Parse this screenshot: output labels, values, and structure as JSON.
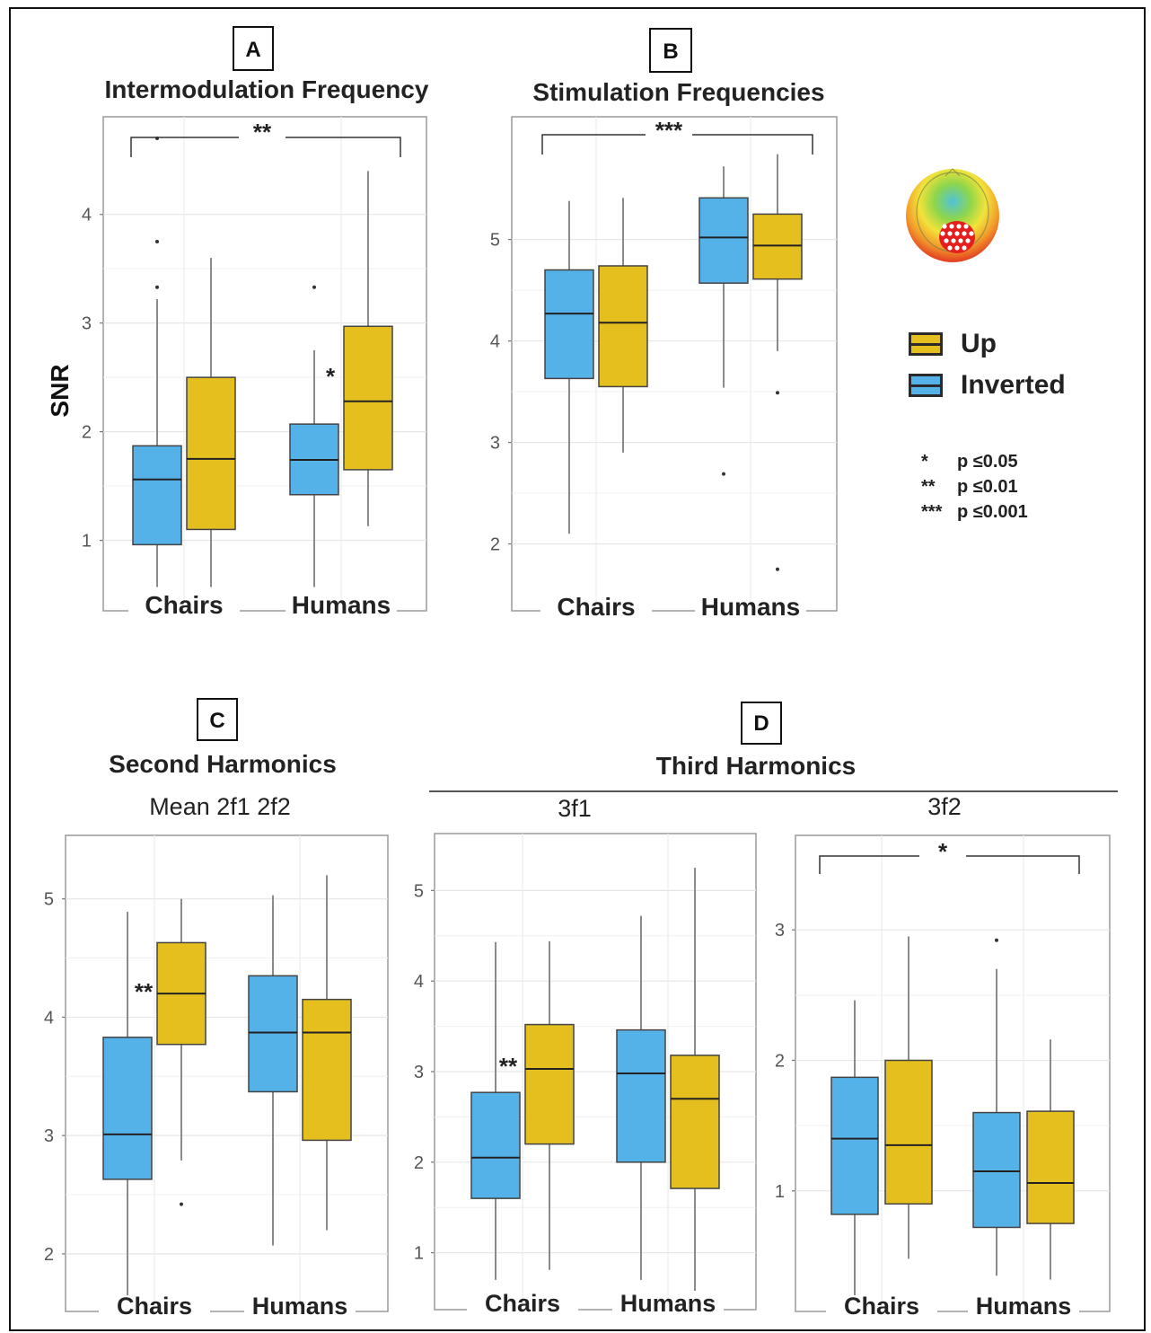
{
  "legend": {
    "up_label": "Up",
    "inverted_label": "Inverted",
    "up_color": "#E5BF1E",
    "inverted_color": "#55B2E8"
  },
  "significance_key": [
    {
      "stars": "*",
      "text": "p ≤0.05"
    },
    {
      "stars": "**",
      "text": "p ≤0.01"
    },
    {
      "stars": "***",
      "text": "p ≤0.001"
    }
  ],
  "section_D": {
    "letter": "D",
    "title": "Third Harmonics"
  },
  "chart_data": [
    {
      "type": "boxplot",
      "panel": "A",
      "title": "Intermodulation Frequency",
      "subtitle": "",
      "ylabel": "SNR",
      "xlabel": "",
      "categories": [
        "Chairs",
        "Humans"
      ],
      "ylim": [
        0.5,
        4.75
      ],
      "yticks": [
        1,
        2,
        3,
        4
      ],
      "series": [
        {
          "name": "Inverted",
          "color": "#55B2E8",
          "boxes": [
            {
              "whisker_low": 0.57,
              "q1": 0.96,
              "median": 1.56,
              "q3": 1.87,
              "whisker_high": 3.22,
              "outliers": [
                3.33,
                3.75,
                4.7
              ]
            },
            {
              "whisker_low": 0.57,
              "q1": 1.42,
              "median": 1.74,
              "q3": 2.07,
              "whisker_high": 2.75,
              "outliers": [
                3.33
              ]
            }
          ]
        },
        {
          "name": "Up",
          "color": "#E5BF1E",
          "boxes": [
            {
              "whisker_low": 0.57,
              "q1": 1.1,
              "median": 1.75,
              "q3": 2.5,
              "whisker_high": 3.6,
              "outliers": []
            },
            {
              "whisker_low": 1.13,
              "q1": 1.65,
              "median": 2.28,
              "q3": 2.97,
              "whisker_high": 4.4,
              "outliers": []
            }
          ]
        }
      ],
      "bracket": {
        "label": "**"
      },
      "annotations": [
        {
          "label": "*",
          "category": "Humans"
        }
      ]
    },
    {
      "type": "boxplot",
      "panel": "B",
      "title": "Stimulation Frequencies",
      "subtitle": "",
      "ylabel": "",
      "xlabel": "",
      "categories": [
        "Chairs",
        "Humans"
      ],
      "ylim": [
        1.5,
        6.05
      ],
      "yticks": [
        2,
        3,
        4,
        5
      ],
      "series": [
        {
          "name": "Inverted",
          "color": "#55B2E8",
          "boxes": [
            {
              "whisker_low": 2.1,
              "q1": 3.63,
              "median": 4.27,
              "q3": 4.7,
              "whisker_high": 5.38,
              "outliers": []
            },
            {
              "whisker_low": 3.54,
              "q1": 4.57,
              "median": 5.02,
              "q3": 5.41,
              "whisker_high": 5.72,
              "outliers": [
                2.69
              ]
            }
          ]
        },
        {
          "name": "Up",
          "color": "#E5BF1E",
          "boxes": [
            {
              "whisker_low": 2.9,
              "q1": 3.55,
              "median": 4.18,
              "q3": 4.74,
              "whisker_high": 5.41,
              "outliers": []
            },
            {
              "whisker_low": 3.9,
              "q1": 4.61,
              "median": 4.94,
              "q3": 5.25,
              "whisker_high": 5.84,
              "outliers": [
                3.49,
                1.75
              ]
            }
          ]
        }
      ],
      "bracket": {
        "label": "***"
      },
      "annotations": []
    },
    {
      "type": "boxplot",
      "panel": "C",
      "title": "Second Harmonics",
      "subtitle": "Mean 2f1 2f2",
      "ylabel": "",
      "xlabel": "",
      "categories": [
        "Chairs",
        "Humans"
      ],
      "ylim": [
        1.65,
        5.4
      ],
      "yticks": [
        2,
        3,
        4,
        5
      ],
      "series": [
        {
          "name": "Inverted",
          "color": "#55B2E8",
          "boxes": [
            {
              "whisker_low": 1.65,
              "q1": 2.63,
              "median": 3.01,
              "q3": 3.83,
              "whisker_high": 4.89,
              "outliers": []
            },
            {
              "whisker_low": 2.07,
              "q1": 3.37,
              "median": 3.87,
              "q3": 4.35,
              "whisker_high": 5.03,
              "outliers": []
            }
          ]
        },
        {
          "name": "Up",
          "color": "#E5BF1E",
          "boxes": [
            {
              "whisker_low": 2.79,
              "q1": 3.77,
              "median": 4.2,
              "q3": 4.63,
              "whisker_high": 5.0,
              "outliers": [
                2.42
              ]
            },
            {
              "whisker_low": 2.2,
              "q1": 2.96,
              "median": 3.87,
              "q3": 4.15,
              "whisker_high": 5.2,
              "outliers": []
            }
          ]
        }
      ],
      "bracket": null,
      "annotations": [
        {
          "label": "**",
          "category": "Chairs"
        }
      ]
    },
    {
      "type": "boxplot",
      "panel": "D",
      "title": "",
      "subtitle": "3f1",
      "ylabel": "",
      "xlabel": "",
      "categories": [
        "Chairs",
        "Humans"
      ],
      "ylim": [
        0.55,
        5.45
      ],
      "yticks": [
        1,
        2,
        3,
        4,
        5
      ],
      "series": [
        {
          "name": "Inverted",
          "color": "#55B2E8",
          "boxes": [
            {
              "whisker_low": 0.7,
              "q1": 1.6,
              "median": 2.05,
              "q3": 2.77,
              "whisker_high": 4.43,
              "outliers": []
            },
            {
              "whisker_low": 0.7,
              "q1": 2.0,
              "median": 2.98,
              "q3": 3.46,
              "whisker_high": 4.72,
              "outliers": []
            }
          ]
        },
        {
          "name": "Up",
          "color": "#E5BF1E",
          "boxes": [
            {
              "whisker_low": 0.81,
              "q1": 2.2,
              "median": 3.03,
              "q3": 3.52,
              "whisker_high": 4.44,
              "outliers": []
            },
            {
              "whisker_low": 0.58,
              "q1": 1.71,
              "median": 2.7,
              "q3": 3.18,
              "whisker_high": 5.25,
              "outliers": []
            }
          ]
        }
      ],
      "bracket": null,
      "annotations": [
        {
          "label": "**",
          "category": "Chairs"
        }
      ]
    },
    {
      "type": "boxplot",
      "panel": "D",
      "title": "",
      "subtitle": "3f2",
      "ylabel": "",
      "xlabel": "",
      "categories": [
        "Chairs",
        "Humans"
      ],
      "ylim": [
        0.2,
        3.6
      ],
      "yticks": [
        1,
        2,
        3
      ],
      "series": [
        {
          "name": "Inverted",
          "color": "#55B2E8",
          "boxes": [
            {
              "whisker_low": 0.2,
              "q1": 0.82,
              "median": 1.4,
              "q3": 1.87,
              "whisker_high": 2.46,
              "outliers": []
            },
            {
              "whisker_low": 0.35,
              "q1": 0.72,
              "median": 1.15,
              "q3": 1.6,
              "whisker_high": 2.7,
              "outliers": [
                2.92
              ]
            }
          ]
        },
        {
          "name": "Up",
          "color": "#E5BF1E",
          "boxes": [
            {
              "whisker_low": 0.48,
              "q1": 0.9,
              "median": 1.35,
              "q3": 2.0,
              "whisker_high": 2.95,
              "outliers": []
            },
            {
              "whisker_low": 0.32,
              "q1": 0.75,
              "median": 1.06,
              "q3": 1.61,
              "whisker_high": 2.16,
              "outliers": []
            }
          ]
        }
      ],
      "bracket": {
        "label": "*"
      },
      "annotations": []
    }
  ]
}
